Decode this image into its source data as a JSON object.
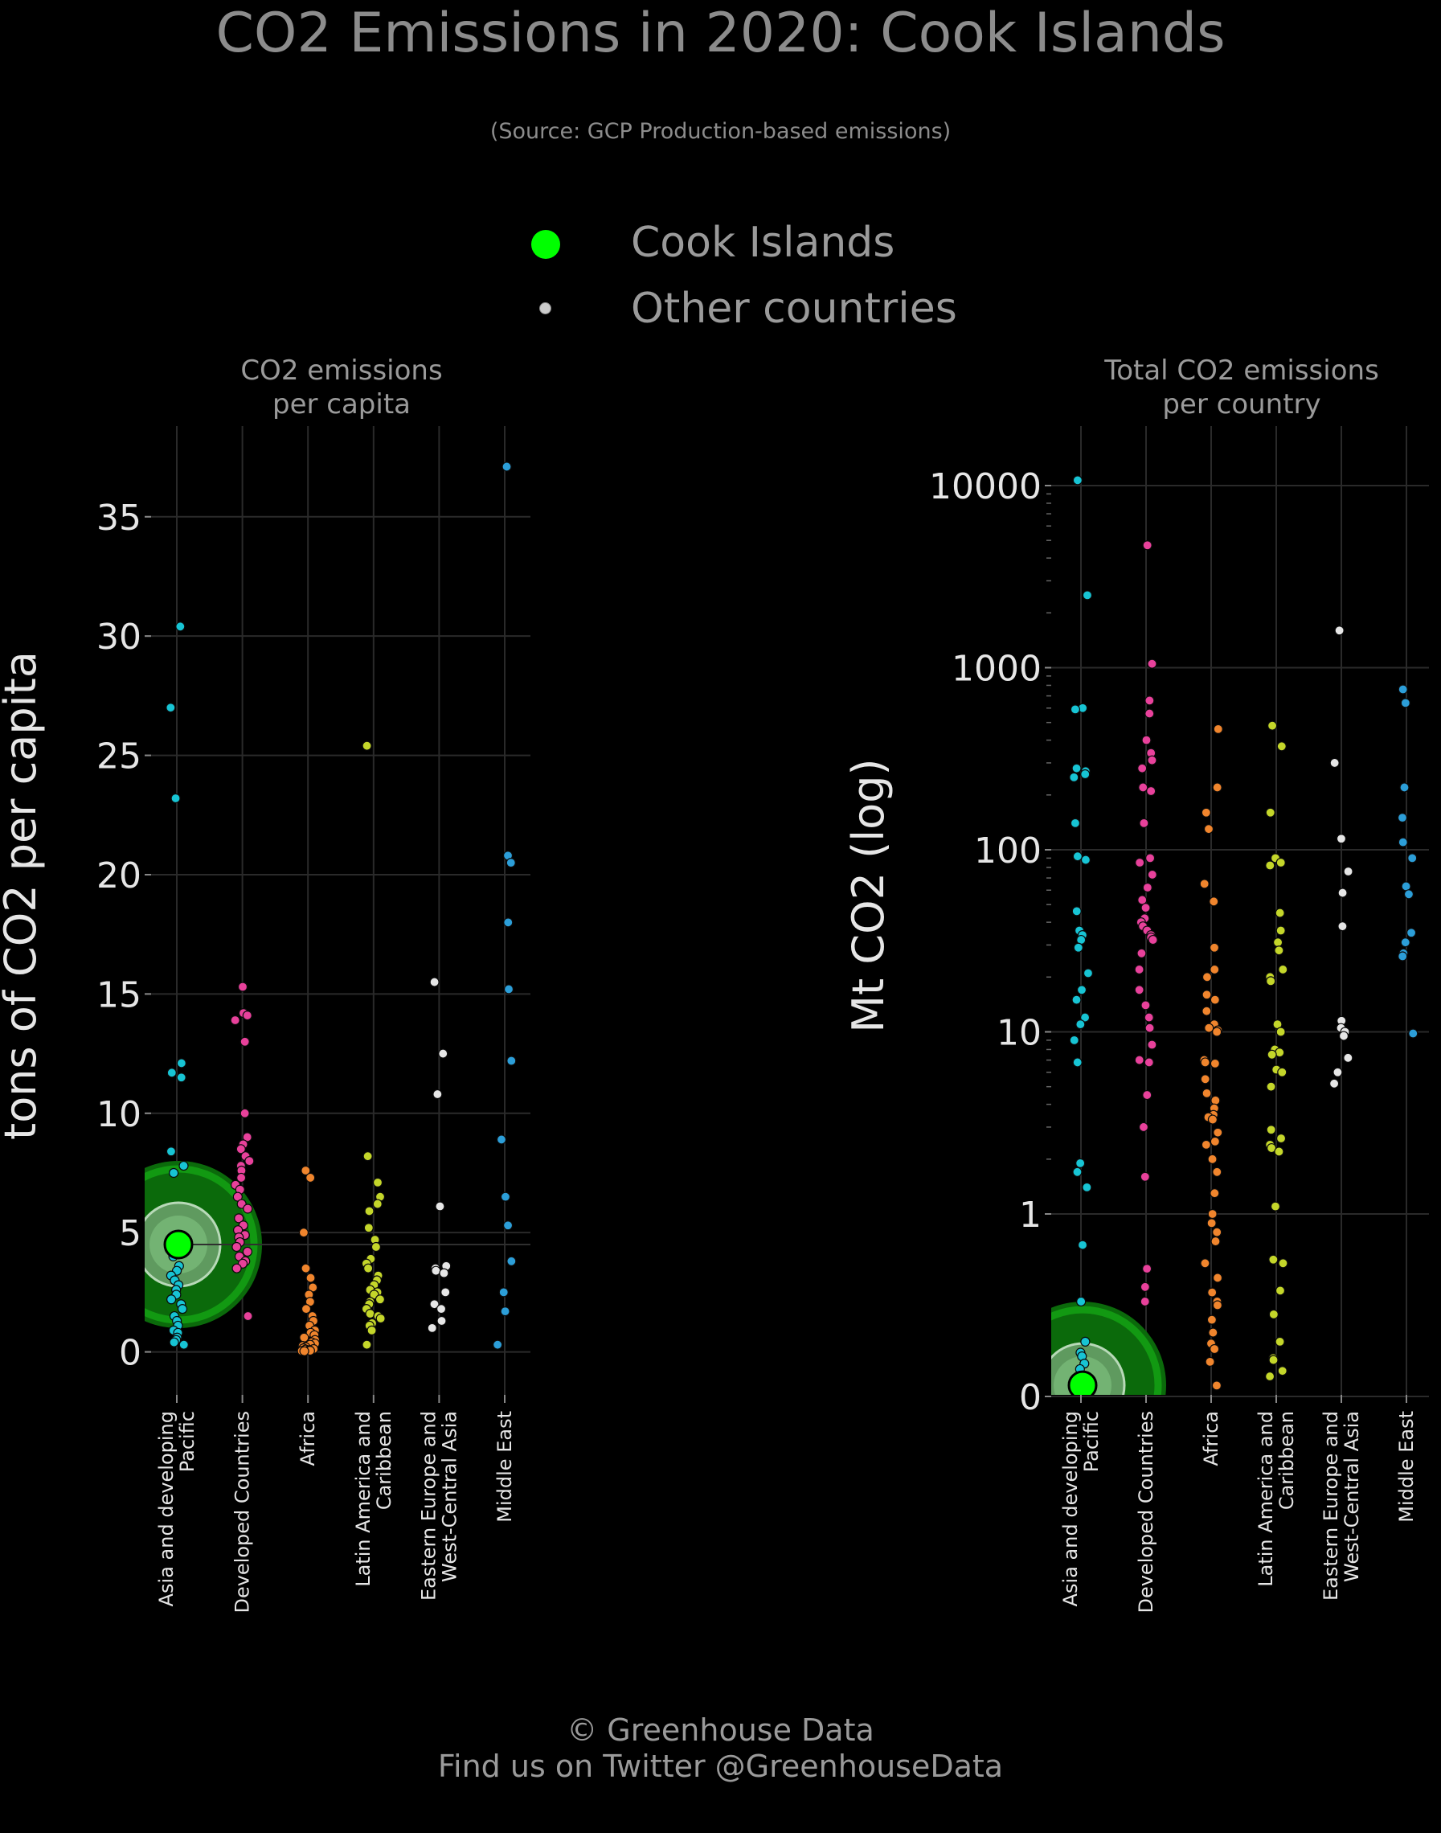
{
  "header": {
    "title": "CO2 Emissions in 2020: Cook Islands",
    "subtitle": "(Source: GCP Production-based emissions)"
  },
  "legend": {
    "highlight_label": "Cook Islands",
    "other_label": "Other countries",
    "highlight_color": "#00ff00",
    "other_color": "#cccccc"
  },
  "footer": {
    "line1": "© Greenhouse Data",
    "line2": "Find us on Twitter @GreenhouseData"
  },
  "colors": {
    "Asia and developing Pacific": "#17c4d4",
    "Developed Countries": "#e8419b",
    "Africa": "#f0852d",
    "Latin America and Caribbean": "#c4d62a",
    "Eastern Europe and West-Central Asia": "#e6e6e6",
    "Middle East": "#2c9ed8"
  },
  "chart_data": [
    {
      "type": "scatter",
      "title": "CO2 emissions\nper capita",
      "title_lines": [
        "CO2 emissions",
        "per capita"
      ],
      "ylabel": "tons of CO2 per capita",
      "ylim": [
        -1.8,
        38.8
      ],
      "yticks": [
        0,
        5,
        10,
        15,
        20,
        25,
        30,
        35
      ],
      "ytick_labels": [
        "0",
        "5",
        "10",
        "15",
        "20",
        "25",
        "30",
        "35"
      ],
      "categories": [
        "Asia and developing Pacific",
        "Developed Countries",
        "Africa",
        "Latin America and Caribbean",
        "Eastern Europe and West-Central Asia",
        "Middle East"
      ],
      "category_label_lines": [
        [
          "Asia and developing",
          "Pacific"
        ],
        [
          "Developed Countries"
        ],
        [
          "Africa"
        ],
        [
          "Latin America and",
          "Caribbean"
        ],
        [
          "Eastern Europe and",
          "West-Central Asia"
        ],
        [
          "Middle East"
        ]
      ],
      "highlight": {
        "name": "Cook Islands",
        "category": "Asia and developing Pacific",
        "value": 4.5
      },
      "series": [
        {
          "category": "Asia and developing Pacific",
          "values": [
            30.4,
            27.0,
            23.2,
            12.1,
            11.7,
            11.5,
            8.4,
            7.8,
            7.5,
            4.8,
            4.3,
            4.0,
            3.6,
            3.4,
            3.2,
            3.0,
            2.8,
            2.6,
            2.4,
            2.2,
            2.0,
            1.8,
            1.5,
            1.3,
            1.1,
            0.9,
            0.8,
            0.6,
            0.5,
            0.4,
            0.3
          ]
        },
        {
          "category": "Developed Countries",
          "values": [
            15.3,
            14.2,
            14.1,
            13.9,
            13.0,
            10.0,
            9.0,
            8.7,
            8.5,
            8.2,
            8.0,
            7.8,
            7.6,
            7.3,
            7.0,
            6.8,
            6.5,
            6.2,
            6.0,
            5.6,
            5.3,
            5.1,
            4.9,
            4.8,
            4.6,
            4.4,
            4.2,
            4.0,
            3.8,
            3.7,
            3.5,
            1.5
          ]
        },
        {
          "category": "Africa",
          "values": [
            7.6,
            7.3,
            5.0,
            3.5,
            3.1,
            2.7,
            2.4,
            2.1,
            1.8,
            1.5,
            1.3,
            1.1,
            0.9,
            0.8,
            0.7,
            0.6,
            0.5,
            0.4,
            0.35,
            0.3,
            0.25,
            0.2,
            0.15,
            0.12,
            0.1,
            0.08,
            0.06,
            0.05,
            0.04,
            0.03
          ]
        },
        {
          "category": "Latin America and Caribbean",
          "values": [
            25.4,
            8.2,
            7.1,
            6.5,
            6.2,
            5.9,
            5.2,
            4.7,
            4.4,
            3.9,
            3.7,
            3.5,
            3.2,
            3.0,
            2.8,
            2.6,
            2.5,
            2.4,
            2.2,
            2.1,
            2.0,
            1.8,
            1.6,
            1.5,
            1.4,
            1.2,
            1.1,
            0.9,
            0.3
          ]
        },
        {
          "category": "Eastern Europe and West-Central Asia",
          "values": [
            15.5,
            12.5,
            10.8,
            6.1,
            3.6,
            3.5,
            3.4,
            3.3,
            2.5,
            2.0,
            1.8,
            1.3,
            1.0
          ]
        },
        {
          "category": "Middle East",
          "values": [
            37.1,
            20.8,
            20.5,
            18.0,
            15.2,
            12.2,
            8.9,
            6.5,
            5.3,
            3.8,
            2.5,
            1.7,
            0.3
          ]
        }
      ]
    },
    {
      "type": "scatter",
      "title": "Total CO2 emissions\nper country",
      "title_lines": [
        "Total CO2 emissions",
        "per country"
      ],
      "ylabel": "Mt CO2 (log)",
      "yscale": "log",
      "ylim": [
        0.0,
        20000
      ],
      "yticks": [
        0,
        1,
        10,
        100,
        1000,
        10000
      ],
      "ytick_labels": [
        "0",
        "1",
        "10",
        "100",
        "1000",
        "10000"
      ],
      "categories": [
        "Asia and developing Pacific",
        "Developed Countries",
        "Africa",
        "Latin America and Caribbean",
        "Eastern Europe and West-Central Asia",
        "Middle East"
      ],
      "category_label_lines": [
        [
          "Asia and developing",
          "Pacific"
        ],
        [
          "Developed Countries"
        ],
        [
          "Africa"
        ],
        [
          "Latin America and",
          "Caribbean"
        ],
        [
          "Eastern Europe and",
          "West-Central Asia"
        ],
        [
          "Middle East"
        ]
      ],
      "highlight": {
        "name": "Cook Islands",
        "category": "Asia and developing Pacific",
        "value": 0.07
      },
      "series": [
        {
          "category": "Asia and developing Pacific",
          "values": [
            10700,
            2500,
            600,
            590,
            280,
            270,
            260,
            250,
            140,
            92,
            88,
            46,
            36,
            34,
            32,
            29,
            21,
            17,
            15,
            12,
            11,
            9,
            6.8,
            1.9,
            1.7,
            1.4,
            0.83,
            0.52,
            0.3,
            0.24,
            0.22,
            0.18,
            0.15
          ]
        },
        {
          "category": "Developed Countries",
          "values": [
            4700,
            1050,
            660,
            560,
            400,
            340,
            310,
            280,
            220,
            210,
            140,
            90,
            85,
            73,
            62,
            53,
            48,
            42,
            40,
            38,
            36,
            34,
            33,
            32,
            27,
            22,
            17,
            14,
            12,
            10.5,
            8.5,
            7,
            6.8,
            4.5,
            3,
            1.6,
            0.7,
            0.6,
            0.52
          ]
        },
        {
          "category": "Africa",
          "values": [
            460,
            220,
            160,
            130,
            65,
            52,
            29,
            22,
            20,
            16,
            15,
            13,
            11,
            10.5,
            10.2,
            10,
            7,
            6.8,
            6.7,
            5.5,
            4.6,
            4.2,
            3.8,
            3.5,
            3.4,
            3.3,
            2.8,
            2.5,
            2.4,
            2,
            1.7,
            1.3,
            1.0,
            0.95,
            0.9,
            0.85,
            0.73,
            0.65,
            0.57,
            0.52,
            0.5,
            0.42,
            0.35,
            0.29,
            0.26,
            0.19,
            0.06
          ]
        },
        {
          "category": "Latin America and Caribbean",
          "values": [
            480,
            370,
            160,
            90,
            85,
            82,
            45,
            36,
            31,
            28,
            22,
            20,
            19,
            11,
            10,
            8,
            7.7,
            7.5,
            6.2,
            6,
            5,
            2.9,
            2.6,
            2.4,
            2.3,
            2.2,
            1.1,
            0.75,
            0.73,
            0.58,
            0.45,
            0.3,
            0.21,
            0.2,
            0.14,
            0.11
          ]
        },
        {
          "category": "Eastern Europe and West-Central Asia",
          "values": [
            1600,
            300,
            115,
            76,
            58,
            38,
            11.5,
            10.5,
            10,
            9.5,
            7.2,
            6,
            5.2
          ]
        },
        {
          "category": "Middle East",
          "values": [
            760,
            640,
            220,
            150,
            110,
            90,
            63,
            57,
            35,
            31,
            27,
            26,
            9.8
          ]
        }
      ]
    }
  ]
}
